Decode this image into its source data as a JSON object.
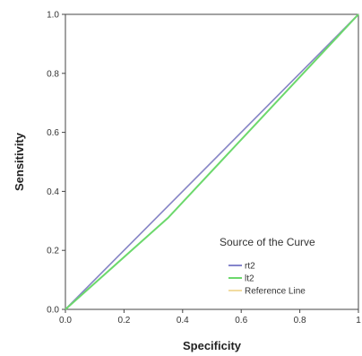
{
  "chart_data": {
    "type": "line",
    "xlabel": "Specificity",
    "ylabel": "Sensitivity",
    "xlim": [
      0,
      1
    ],
    "ylim": [
      0,
      1
    ],
    "x_ticks": [
      "0.0",
      "0.2",
      "0.4",
      "0.6",
      "0.8",
      "1"
    ],
    "y_ticks": [
      "0.0",
      "0.2",
      "0.4",
      "0.6",
      "0.8",
      "1.0"
    ],
    "grid": false,
    "legend": {
      "title": "Source of the Curve",
      "position": "bottom-right"
    },
    "series": [
      {
        "name": "rt2",
        "color": "#8585cc",
        "points": [
          [
            0,
            0
          ],
          [
            1,
            1
          ]
        ]
      },
      {
        "name": "lt2",
        "color": "#6cd86c",
        "points": [
          [
            0,
            0
          ],
          [
            0.35,
            0.31
          ],
          [
            1,
            1
          ]
        ]
      },
      {
        "name": "Reference Line",
        "color": "#f2dca0",
        "points": [
          [
            0,
            0
          ],
          [
            1,
            1
          ]
        ]
      }
    ]
  }
}
